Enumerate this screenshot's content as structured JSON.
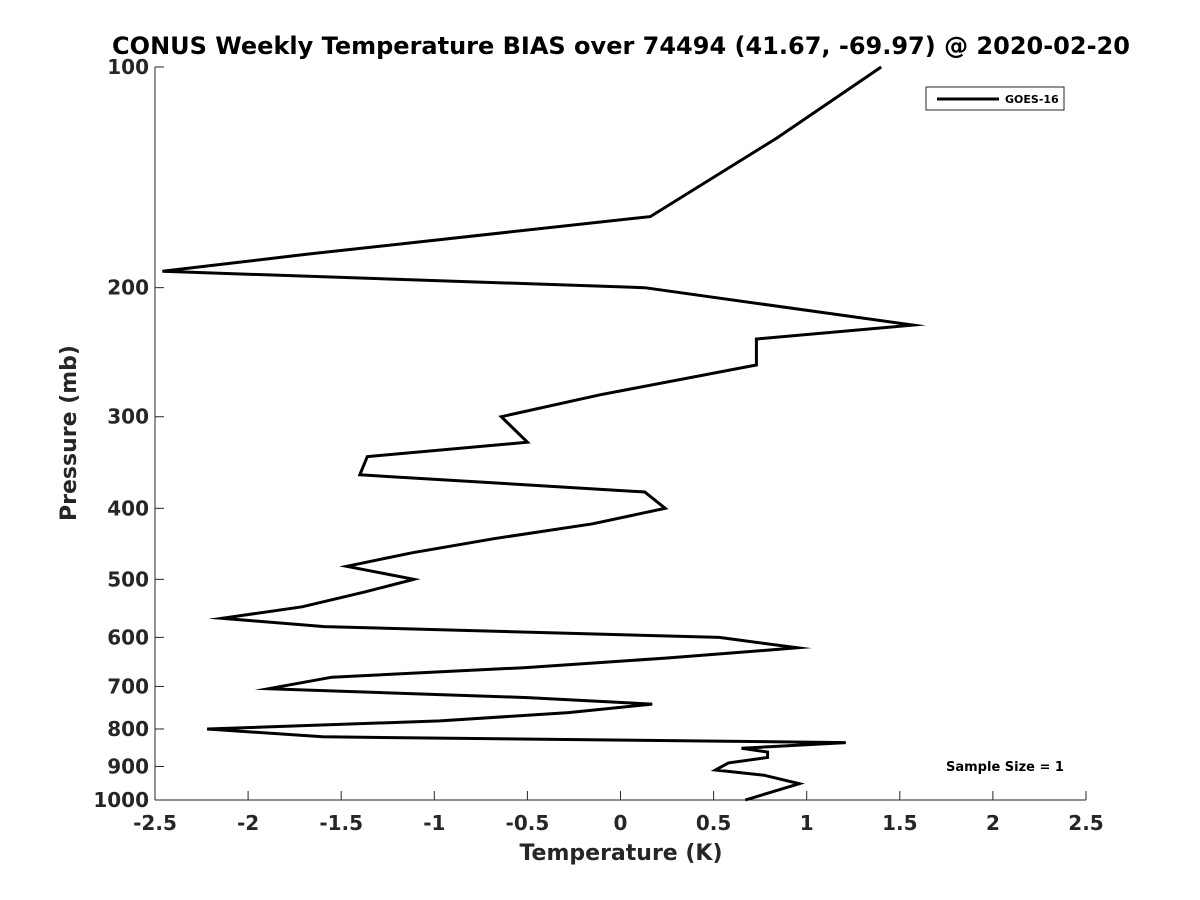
{
  "chart_data": {
    "type": "line",
    "title": "CONUS Weekly Temperature BIAS over 74494 (41.67, -69.97) @ 2020-02-20",
    "xlabel": "Temperature (K)",
    "ylabel": "Pressure (mb)",
    "xlim": [
      -2.5,
      2.5
    ],
    "ylim": [
      1000,
      100
    ],
    "yscale": "log",
    "xticks": [
      -2.5,
      -2,
      -1.5,
      -1,
      -0.5,
      0,
      0.5,
      1,
      1.5,
      2,
      2.5
    ],
    "xtick_labels": [
      "-2.5",
      "-2",
      "-1.5",
      "-1",
      "-0.5",
      "0",
      "0.5",
      "1",
      "1.5",
      "2",
      "2.5"
    ],
    "yticks": [
      100,
      200,
      300,
      400,
      500,
      600,
      700,
      800,
      900,
      1000
    ],
    "ytick_labels": [
      "100",
      "200",
      "300",
      "400",
      "500",
      "600",
      "700",
      "800",
      "900",
      "1000"
    ],
    "legend": {
      "placement": "top-right",
      "entries": [
        "GOES-16"
      ]
    },
    "annotation": "Sample Size = 1",
    "grid": false,
    "series": [
      {
        "name": "GOES-16",
        "color": "#000000",
        "points": [
          [
            1.4,
            100
          ],
          [
            0.84,
            125
          ],
          [
            0.16,
            160
          ],
          [
            -1.68,
            180
          ],
          [
            -2.46,
            190
          ],
          [
            0.13,
            200
          ],
          [
            1.57,
            225
          ],
          [
            0.73,
            235
          ],
          [
            0.73,
            255
          ],
          [
            -0.11,
            280
          ],
          [
            -0.64,
            300
          ],
          [
            -0.5,
            325
          ],
          [
            -1.36,
            340
          ],
          [
            -1.4,
            360
          ],
          [
            0.13,
            380
          ],
          [
            0.24,
            400
          ],
          [
            -0.15,
            420
          ],
          [
            -0.68,
            440
          ],
          [
            -1.12,
            460
          ],
          [
            -1.47,
            480
          ],
          [
            -1.11,
            500
          ],
          [
            -1.37,
            520
          ],
          [
            -1.71,
            545
          ],
          [
            -2.14,
            565
          ],
          [
            -1.59,
            580
          ],
          [
            0.53,
            600
          ],
          [
            0.95,
            620
          ],
          [
            0.26,
            640
          ],
          [
            -0.52,
            660
          ],
          [
            -1.55,
            680
          ],
          [
            -1.89,
            705
          ],
          [
            -0.5,
            725
          ],
          [
            0.17,
            740
          ],
          [
            -0.28,
            760
          ],
          [
            -0.97,
            780
          ],
          [
            -2.22,
            800
          ],
          [
            -1.6,
            820
          ],
          [
            1.21,
            835
          ],
          [
            0.65,
            850
          ],
          [
            0.79,
            860
          ],
          [
            0.79,
            875
          ],
          [
            0.58,
            890
          ],
          [
            0.51,
            910
          ],
          [
            0.77,
            925
          ],
          [
            0.96,
            950
          ],
          [
            0.67,
            1000
          ]
        ]
      }
    ]
  }
}
